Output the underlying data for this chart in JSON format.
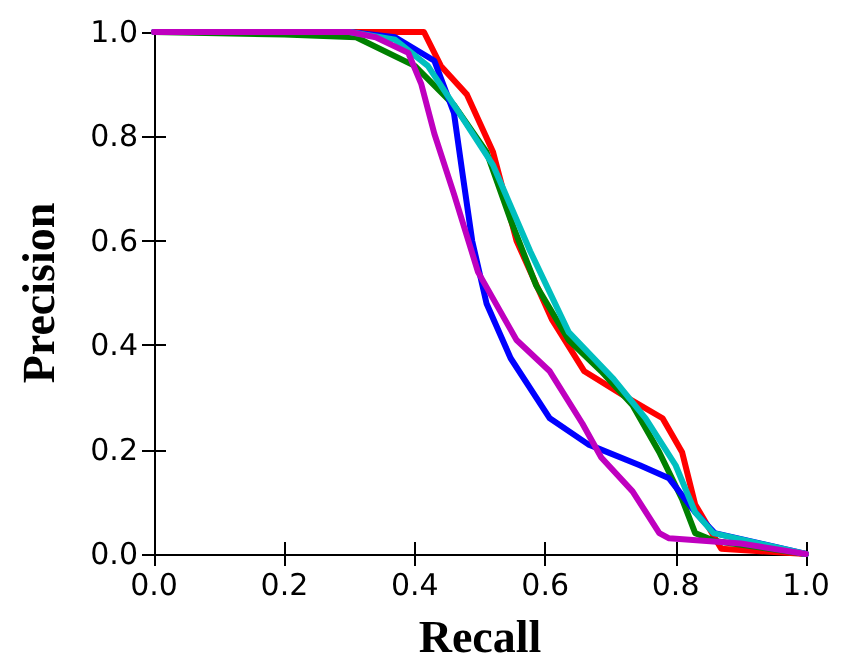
{
  "chart_data": {
    "type": "line",
    "xlabel": "Recall",
    "ylabel": "Precision",
    "xlim": [
      0,
      1
    ],
    "ylim": [
      0,
      1
    ],
    "xticks": [
      {
        "value": 0,
        "label": "0.0"
      },
      0.2,
      0.4,
      0.6,
      0.8,
      {
        "value": 1,
        "label": "1.0"
      }
    ],
    "yticks": [
      {
        "value": 0,
        "label": "0.0"
      },
      0.2,
      0.4,
      0.6,
      0.8,
      {
        "value": 1,
        "label": "1.0"
      }
    ],
    "grid": false,
    "marker": "none",
    "line_style": "solid",
    "series": [
      {
        "color": "#ff0000",
        "x": [
          0,
          0.3,
          0.414,
          0.44,
          0.48,
          0.52,
          0.556,
          0.61,
          0.66,
          0.725,
          0.78,
          0.81,
          0.83,
          0.87,
          1
        ],
        "values": [
          1,
          1,
          1,
          0.935,
          0.88,
          0.77,
          0.6,
          0.45,
          0.35,
          0.3,
          0.26,
          0.195,
          0.095,
          0.01,
          0
        ]
      },
      {
        "color": "#008000",
        "x": [
          0,
          0.2,
          0.31,
          0.4,
          0.46,
          0.51,
          0.547,
          0.586,
          0.636,
          0.686,
          0.734,
          0.775,
          0.81,
          0.83,
          0.86,
          1
        ],
        "values": [
          1,
          0.995,
          0.99,
          0.935,
          0.86,
          0.77,
          0.64,
          0.515,
          0.41,
          0.35,
          0.285,
          0.195,
          0.105,
          0.04,
          0.025,
          0
        ]
      },
      {
        "color": "#0000ff",
        "x": [
          0,
          0.3,
          0.37,
          0.43,
          0.46,
          0.473,
          0.488,
          0.51,
          0.547,
          0.607,
          0.666,
          0.745,
          0.79,
          0.83,
          0.86,
          1
        ],
        "values": [
          1,
          1,
          0.99,
          0.945,
          0.845,
          0.73,
          0.6,
          0.48,
          0.375,
          0.26,
          0.21,
          0.17,
          0.145,
          0.08,
          0.04,
          0
        ]
      },
      {
        "color": "#00bfbf",
        "x": [
          0,
          0.3,
          0.37,
          0.42,
          0.468,
          0.52,
          0.577,
          0.636,
          0.705,
          0.754,
          0.8,
          0.83,
          0.858,
          1
        ],
        "values": [
          1,
          1,
          0.985,
          0.935,
          0.845,
          0.745,
          0.58,
          0.425,
          0.335,
          0.26,
          0.17,
          0.08,
          0.04,
          0
        ]
      },
      {
        "color": "#bf00bf",
        "x": [
          0,
          0.3,
          0.34,
          0.39,
          0.41,
          0.43,
          0.46,
          0.497,
          0.556,
          0.607,
          0.657,
          0.686,
          0.734,
          0.775,
          0.79,
          0.9,
          1
        ],
        "values": [
          1,
          1,
          0.99,
          0.96,
          0.9,
          0.805,
          0.69,
          0.54,
          0.41,
          0.35,
          0.25,
          0.185,
          0.12,
          0.04,
          0.03,
          0.02,
          0
        ]
      }
    ]
  }
}
